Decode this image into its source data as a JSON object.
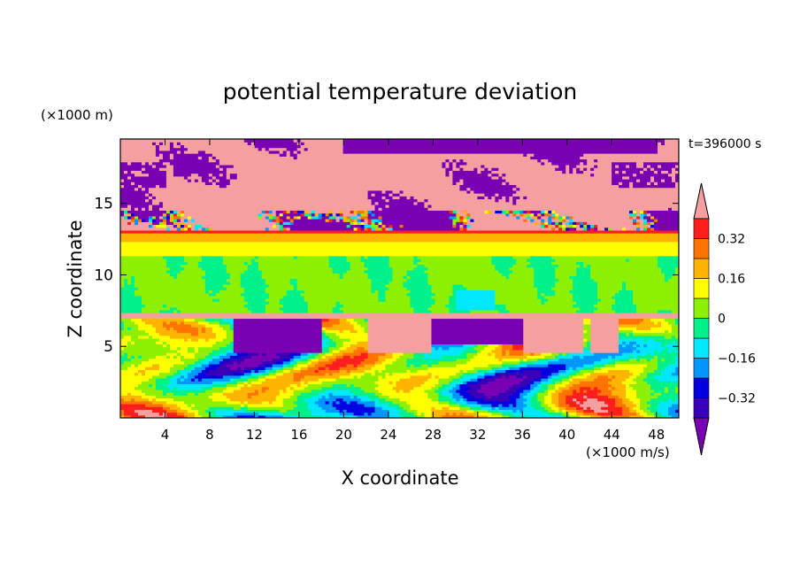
{
  "chart_data": {
    "type": "heatmap",
    "title": "potential temperature deviation",
    "xlabel": "X coordinate",
    "ylabel": "Z coordinate",
    "x_unit": "(×1000 m/s)",
    "y_unit": "(×1000 m)",
    "time_label": "t=396000 s",
    "xlim": [
      0,
      50
    ],
    "ylim": [
      0,
      19.5
    ],
    "x_ticks": [
      4,
      8,
      12,
      16,
      20,
      24,
      28,
      32,
      36,
      40,
      44,
      48
    ],
    "y_ticks": [
      5,
      10,
      15
    ],
    "colorbar": {
      "levels": [
        -0.4,
        -0.32,
        -0.24,
        -0.16,
        -0.08,
        0,
        0.08,
        0.16,
        0.24,
        0.32,
        0.4
      ],
      "tick_labels": [
        "0.32",
        "0.16",
        "0",
        "−0.16",
        "−0.32"
      ],
      "tick_values": [
        0.32,
        0.16,
        0,
        -0.16,
        -0.32
      ],
      "colors": [
        "#7a00b3",
        "#3a00b8",
        "#0000e0",
        "#0096ff",
        "#00e8ff",
        "#00f08c",
        "#8cf000",
        "#ffff00",
        "#ffb400",
        "#ff7300",
        "#ff1e1e",
        "#f5a0a0"
      ],
      "extend": "both"
    },
    "field_description": "upper layer z>13: mostly +0.4 (pink) with patches of -0.4 (purple); z 7.3-13: banded near zero (green/cyan); lower layer z<7: turbulent mixture of all levels"
  }
}
